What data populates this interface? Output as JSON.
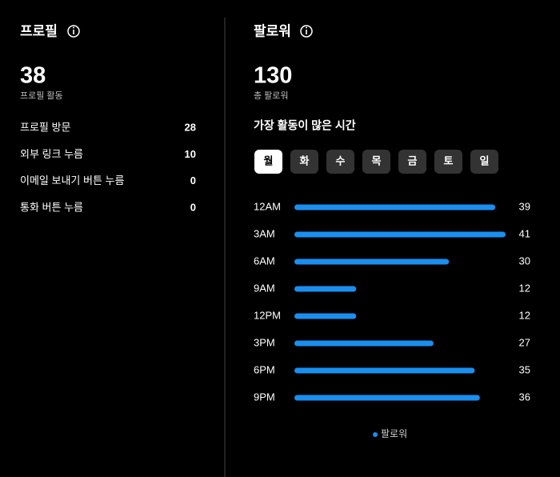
{
  "profile": {
    "title": "프로필",
    "total": "38",
    "total_label": "프로필 활동",
    "rows": [
      [
        "프로필 방문",
        "28"
      ],
      [
        "외부 링크 누름",
        "10"
      ],
      [
        "이메일 보내기 버튼 누름",
        "0"
      ],
      [
        "통화 버튼 누름",
        "0"
      ]
    ]
  },
  "followers": {
    "title": "팔로워",
    "total": "130",
    "total_label": "총 팔로워",
    "section_title": "가장 활동이 많은 시간",
    "days": [
      "월",
      "화",
      "수",
      "목",
      "금",
      "토",
      "일"
    ],
    "selected_day": 0
  },
  "chart_data": {
    "type": "bar",
    "orientation": "horizontal",
    "categories": [
      "12AM",
      "3AM",
      "6AM",
      "9AM",
      "12PM",
      "3PM",
      "6PM",
      "9PM"
    ],
    "series": [
      {
        "name": "팔로워",
        "color": "#1a8ff0",
        "values": [
          39,
          41,
          30,
          12,
          12,
          27,
          35,
          36
        ]
      }
    ]
  }
}
